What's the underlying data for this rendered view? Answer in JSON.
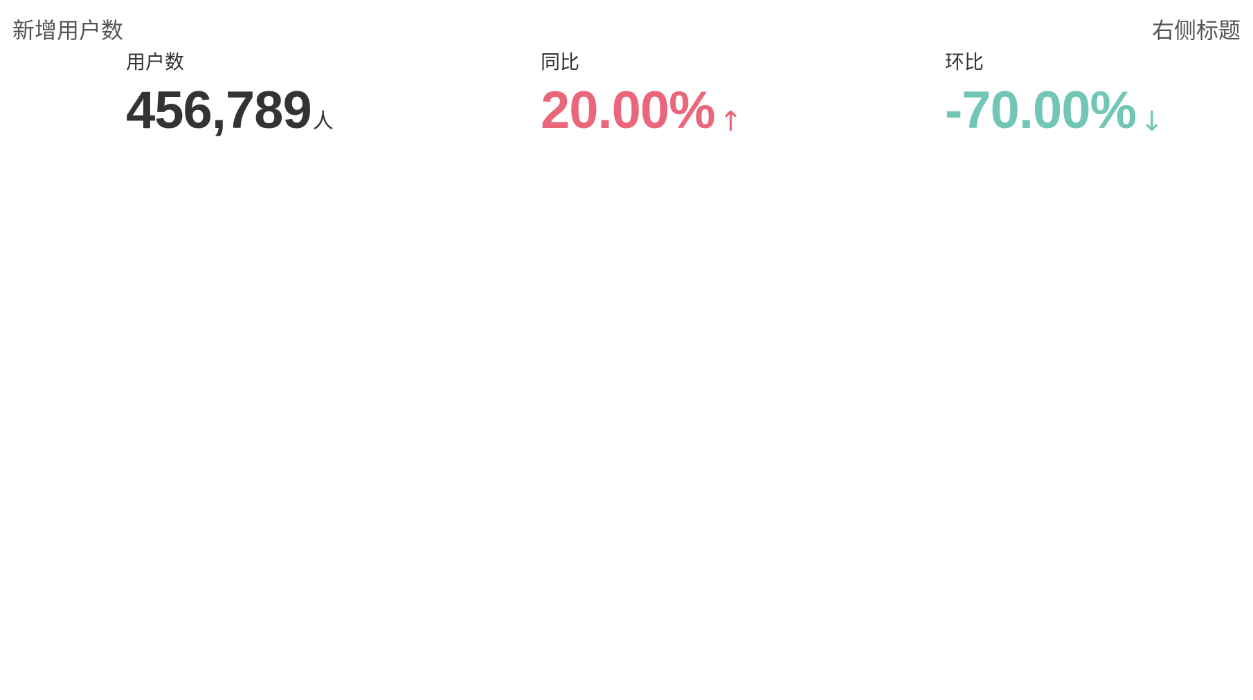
{
  "header": {
    "title": "新增用户数",
    "right_title": "右侧标题"
  },
  "metrics": {
    "users": {
      "label": "用户数",
      "value": "456,789",
      "suffix": "人",
      "color": "#333333"
    },
    "yoy": {
      "label": "同比",
      "value": "20.00%",
      "arrow": "↑",
      "arrow_icon": "arrow-up-icon",
      "color": "#e9667b"
    },
    "mom": {
      "label": "环比",
      "value": "-70.00%",
      "arrow": "↓",
      "arrow_icon": "arrow-down-icon",
      "color": "#72c6b6"
    }
  }
}
